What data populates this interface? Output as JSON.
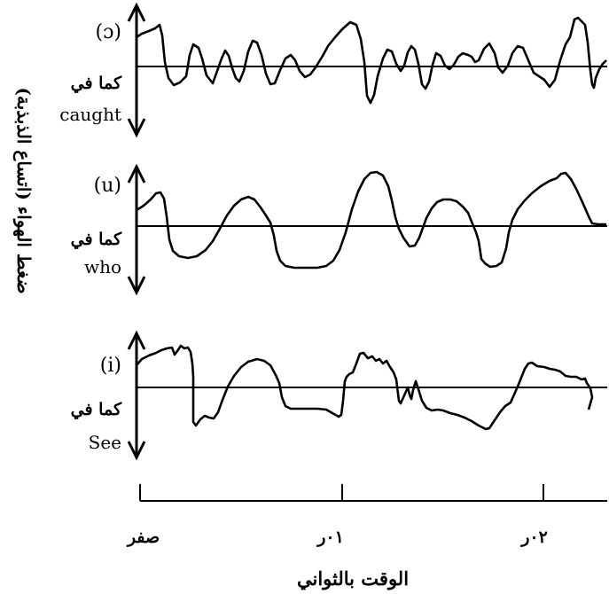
{
  "y_axis_label": "ضغط الهواء (اتساع الذبذبة)",
  "x_axis_label": "الوقت بالثواني",
  "x_ticks": [
    "صفر",
    "٠١ر",
    "٠٢ر"
  ],
  "panels": [
    {
      "symbol": "(ɔ)",
      "as_in": "كما في",
      "word": "caught"
    },
    {
      "symbol": "(u)",
      "as_in": "كما في",
      "word": "who"
    },
    {
      "symbol": "(i)",
      "as_in": "كما في",
      "word": "See"
    }
  ]
}
